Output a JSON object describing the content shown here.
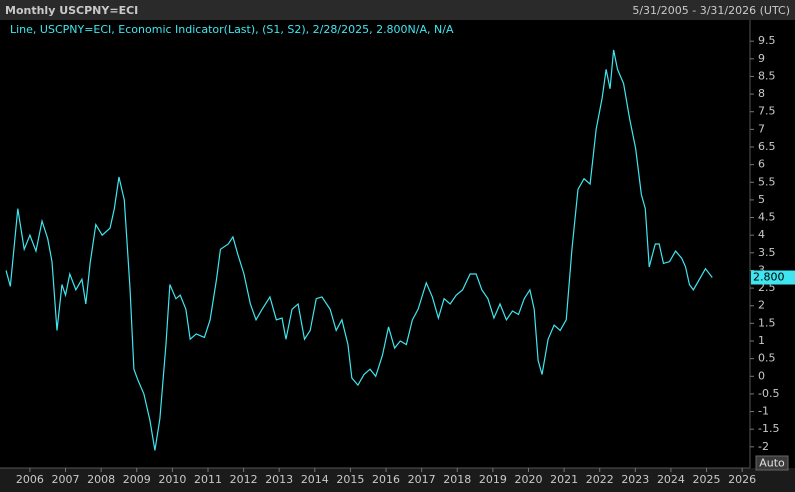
{
  "chart_data": {
    "type": "line",
    "title": "Monthly USCPNY=ECI",
    "date_range": "5/31/2005 - 3/31/2026 (UTC)",
    "auto_button": "Auto",
    "x": [
      2005.33,
      2005.45,
      2005.66,
      2005.84,
      2006.0,
      2006.17,
      2006.34,
      2006.5,
      2006.62,
      2006.76,
      2006.9,
      2007.0,
      2007.12,
      2007.29,
      2007.46,
      2007.57,
      2007.69,
      2007.85,
      2008.03,
      2008.25,
      2008.37,
      2008.5,
      2008.65,
      2008.81,
      2008.92,
      2009.03,
      2009.2,
      2009.37,
      2009.51,
      2009.65,
      2009.82,
      2009.93,
      2010.1,
      2010.22,
      2010.38,
      2010.5,
      2010.67,
      2010.9,
      2011.06,
      2011.24,
      2011.35,
      2011.57,
      2011.7,
      2011.84,
      2012.01,
      2012.19,
      2012.35,
      2012.52,
      2012.74,
      2012.92,
      2013.08,
      2013.19,
      2013.36,
      2013.53,
      2013.71,
      2013.87,
      2014.04,
      2014.2,
      2014.43,
      2014.6,
      2014.76,
      2014.93,
      2015.04,
      2015.21,
      2015.38,
      2015.55,
      2015.71,
      2015.9,
      2016.07,
      2016.24,
      2016.4,
      2016.57,
      2016.74,
      2016.9,
      2017.13,
      2017.3,
      2017.47,
      2017.63,
      2017.8,
      2017.97,
      2018.15,
      2018.36,
      2018.53,
      2018.69,
      2018.86,
      2019.03,
      2019.2,
      2019.38,
      2019.55,
      2019.72,
      2019.88,
      2020.04,
      2020.16,
      2020.27,
      2020.38,
      2020.55,
      2020.72,
      2020.89,
      2021.06,
      2021.22,
      2021.39,
      2021.56,
      2021.73,
      2021.9,
      2022.07,
      2022.18,
      2022.29,
      2022.39,
      2022.5,
      2022.67,
      2022.84,
      2023.01,
      2023.17,
      2023.28,
      2023.39,
      2023.56,
      2023.67,
      2023.79,
      2023.96,
      2024.13,
      2024.3,
      2024.41,
      2024.52,
      2024.63,
      2024.8,
      2024.97,
      2025.16
    ],
    "series": [
      {
        "name": "Line, USCPNY=ECI, Economic Indicator(Last), (S1, S2), 2/28/2025, 2.800N/A, N/A",
        "color": "#3fe6ef",
        "values": [
          3.0,
          2.55,
          4.75,
          3.6,
          4.0,
          3.55,
          4.4,
          3.9,
          3.25,
          1.3,
          2.6,
          2.3,
          2.9,
          2.45,
          2.75,
          2.05,
          3.2,
          4.3,
          4.0,
          4.2,
          4.75,
          5.65,
          5.0,
          2.5,
          0.2,
          -0.1,
          -0.5,
          -1.25,
          -2.1,
          -1.2,
          0.9,
          2.6,
          2.2,
          2.3,
          1.9,
          1.05,
          1.2,
          1.1,
          1.6,
          2.75,
          3.6,
          3.75,
          3.95,
          3.45,
          2.9,
          2.05,
          1.6,
          1.9,
          2.25,
          1.6,
          1.65,
          1.05,
          1.9,
          2.05,
          1.05,
          1.3,
          2.2,
          2.25,
          1.9,
          1.3,
          1.6,
          0.9,
          -0.05,
          -0.25,
          0.05,
          0.2,
          0.0,
          0.6,
          1.4,
          0.8,
          1.0,
          0.9,
          1.6,
          1.9,
          2.65,
          2.25,
          1.65,
          2.2,
          2.05,
          2.3,
          2.45,
          2.9,
          2.9,
          2.45,
          2.2,
          1.65,
          2.05,
          1.6,
          1.85,
          1.75,
          2.2,
          2.45,
          1.9,
          0.45,
          0.05,
          1.05,
          1.45,
          1.3,
          1.6,
          3.6,
          5.3,
          5.6,
          5.45,
          7.0,
          7.9,
          8.7,
          8.15,
          9.25,
          8.7,
          8.3,
          7.3,
          6.45,
          5.15,
          4.75,
          3.1,
          3.75,
          3.75,
          3.2,
          3.25,
          3.55,
          3.35,
          3.1,
          2.6,
          2.45,
          2.75,
          3.05,
          2.8
        ],
        "value_labels": [
          null,
          null,
          null,
          null,
          null,
          null,
          null,
          null,
          null,
          null,
          null,
          null,
          null,
          null,
          null,
          null,
          null,
          null,
          null,
          null,
          null,
          null,
          null,
          null,
          null,
          null,
          null,
          null,
          null,
          null,
          null,
          null,
          null,
          null,
          null,
          null,
          null,
          null,
          null,
          null,
          null,
          null,
          null,
          null,
          null,
          null,
          null,
          null,
          null,
          null,
          null,
          null,
          null,
          null,
          null,
          null,
          null,
          null,
          null,
          null,
          null,
          null,
          null,
          null,
          null,
          null,
          null,
          null,
          null,
          null,
          null,
          null,
          null,
          null,
          null,
          null,
          null,
          null,
          null,
          null,
          null,
          null,
          null,
          null,
          null,
          null,
          null,
          null,
          null,
          null,
          null,
          null,
          null,
          null,
          null,
          null,
          null,
          null,
          null,
          null,
          null,
          null,
          null,
          null,
          null,
          null,
          null,
          null,
          null,
          null,
          null,
          null,
          null,
          null,
          null,
          null,
          null,
          null,
          null,
          null,
          null,
          null,
          null,
          null,
          null,
          null,
          "2.800"
        ]
      }
    ],
    "xlim": [
      2005.16,
      2026.22
    ],
    "xticks": [
      2006,
      2007,
      2008,
      2009,
      2010,
      2011,
      2012,
      2013,
      2014,
      2015,
      2016,
      2017,
      2018,
      2019,
      2020,
      2021,
      2022,
      2023,
      2024,
      2025,
      2026
    ],
    "ylim": [
      -2.6,
      10.1
    ],
    "yticks": [
      9.5,
      9,
      8.5,
      8,
      7.5,
      7,
      6.5,
      6,
      5.5,
      5,
      4.5,
      4,
      3.5,
      3,
      2.5,
      2,
      1.5,
      1,
      0.5,
      0,
      -0.5,
      -1,
      -1.5,
      -2
    ],
    "y_axis_side": "right",
    "grid": false
  }
}
